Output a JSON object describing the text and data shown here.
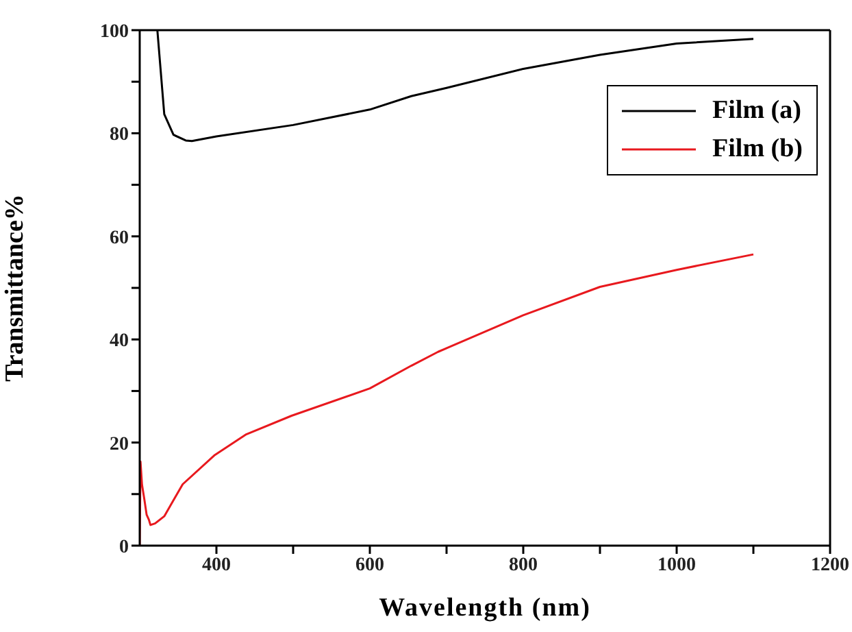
{
  "chart_data": {
    "type": "line",
    "xlabel": "Wavelength (nm)",
    "ylabel": "Transmittance%",
    "xlim": [
      300,
      1200
    ],
    "xticks": [
      400,
      {
        "value": 500,
        "label": null
      },
      600,
      {
        "value": 700,
        "label": null
      },
      800,
      {
        "value": 900,
        "label": null
      },
      1000,
      {
        "value": 1100,
        "label": null
      },
      1200
    ],
    "ylim": [
      0,
      100
    ],
    "yticks": [
      0,
      {
        "value": 10,
        "label": null
      },
      20,
      {
        "value": 30,
        "label": null
      },
      40,
      {
        "value": 50,
        "label": null
      },
      60,
      {
        "value": 70,
        "label": null
      },
      80,
      {
        "value": 90,
        "label": null
      },
      100
    ],
    "legend": "top right",
    "marker": "none",
    "line_style": "solid",
    "series": [
      {
        "name": "Film (a)",
        "color": "#000000",
        "x": [
          323,
          332,
          344,
          360,
          368,
          400,
          500,
          600,
          654,
          700,
          800,
          900,
          1000,
          1100
        ],
        "values": [
          100,
          83.7,
          79.7,
          78.6,
          78.5,
          79.4,
          81.6,
          84.6,
          87.2,
          88.8,
          92.5,
          95.2,
          97.4,
          98.3
        ]
      },
      {
        "name": "Film (b)",
        "color": "#e8191e",
        "x": [
          300,
          301,
          303,
          306,
          309,
          312,
          314,
          320,
          332,
          356,
          398,
          439,
          498,
          600,
          654,
          689,
          800,
          900,
          1000,
          1100
        ],
        "values": [
          0,
          16.3,
          11.8,
          9,
          6,
          5,
          4,
          4.3,
          5.7,
          11.9,
          17.6,
          21.6,
          25.2,
          30.5,
          34.9,
          37.6,
          44.7,
          50.2,
          53.5,
          56.5
        ]
      }
    ]
  }
}
